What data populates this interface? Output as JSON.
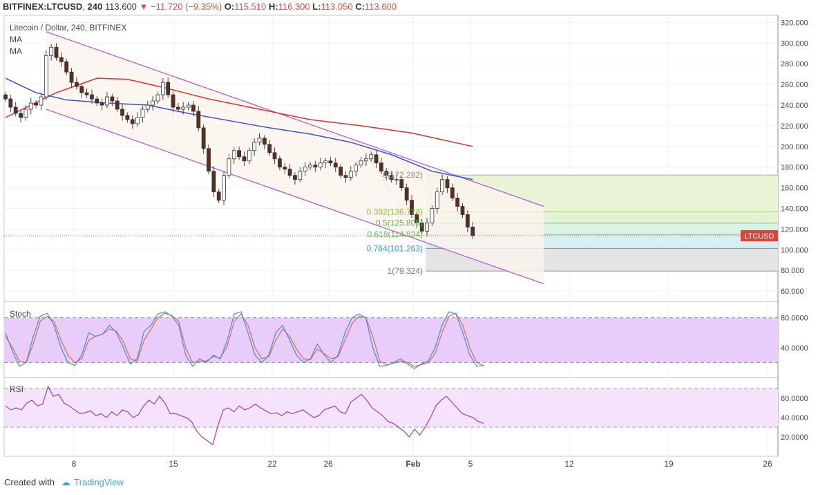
{
  "header": {
    "symbol": "BITFINEX:LTCUSD",
    "interval": "240",
    "last": "113.600",
    "change": "−11.720 (−9.35%)",
    "open_label": "O:",
    "open": "115.510",
    "high_label": "H:",
    "high": "116.300",
    "low_label": "L:",
    "low": "113.050",
    "close_label": "C:",
    "close": "113.600"
  },
  "legend": {
    "title": "Litecoin / Dollar, 240, BITFINEX",
    "ma1": "MA",
    "ma2": "MA"
  },
  "footer": {
    "created_with": "Created with",
    "brand": "TradingView"
  },
  "chart_data": {
    "type": "candlestick",
    "x_ticks": [
      "8",
      "15",
      "22",
      "26",
      "Feb",
      "5",
      "12",
      "19",
      "26"
    ],
    "y_ticks": [
      "320.000",
      "300.000",
      "280.000",
      "260.000",
      "240.000",
      "220.000",
      "200.000",
      "180.000",
      "160.000",
      "140.000",
      "120.000",
      "100.000",
      "80.000",
      "60.000"
    ],
    "ylim": [
      50,
      327
    ],
    "last_price_label": "LTCUSD",
    "last_price": 113.6,
    "fib_levels": [
      {
        "label": "0(172.282)",
        "value": 172.282
      },
      {
        "label": "0.382(136.773)",
        "value": 136.773
      },
      {
        "label": "0.5(125.805)",
        "value": 125.805
      },
      {
        "label": "0.618(114.834)",
        "value": 114.834
      },
      {
        "label": "0.764(101.263)",
        "value": 101.263
      },
      {
        "label": "1(79.324)",
        "value": 79.324
      }
    ],
    "close_series": [
      246,
      238,
      232,
      228,
      236,
      242,
      240,
      248,
      288,
      296,
      286,
      282,
      272,
      262,
      258,
      252,
      250,
      246,
      242,
      240,
      248,
      244,
      236,
      230,
      226,
      222,
      228,
      236,
      240,
      244,
      250,
      262,
      250,
      238,
      236,
      238,
      240,
      234,
      218,
      198,
      176,
      156,
      148,
      172,
      188,
      196,
      190,
      186,
      196,
      204,
      208,
      202,
      194,
      188,
      180,
      178,
      172,
      168,
      176,
      180,
      182,
      180,
      184,
      186,
      184,
      180,
      172,
      170,
      176,
      182,
      186,
      188,
      192,
      184,
      176,
      172,
      168,
      168,
      160,
      148,
      134,
      126,
      118,
      126,
      140,
      156,
      168,
      160,
      150,
      142,
      134,
      122,
      113.6
    ],
    "ma_slow": [
      {
        "x": 0,
        "y": 228
      },
      {
        "x": 10,
        "y": 252
      },
      {
        "x": 18,
        "y": 266
      },
      {
        "x": 24,
        "y": 265
      },
      {
        "x": 32,
        "y": 256
      },
      {
        "x": 40,
        "y": 246
      },
      {
        "x": 50,
        "y": 236
      },
      {
        "x": 60,
        "y": 226
      },
      {
        "x": 70,
        "y": 220
      },
      {
        "x": 80,
        "y": 213
      },
      {
        "x": 92,
        "y": 200
      }
    ],
    "ma_fast": [
      {
        "x": 0,
        "y": 266
      },
      {
        "x": 6,
        "y": 252
      },
      {
        "x": 12,
        "y": 245
      },
      {
        "x": 20,
        "y": 242
      },
      {
        "x": 28,
        "y": 240
      },
      {
        "x": 36,
        "y": 232
      },
      {
        "x": 44,
        "y": 225
      },
      {
        "x": 52,
        "y": 218
      },
      {
        "x": 60,
        "y": 212
      },
      {
        "x": 68,
        "y": 204
      },
      {
        "x": 76,
        "y": 192
      },
      {
        "x": 84,
        "y": 176
      },
      {
        "x": 92,
        "y": 168
      }
    ],
    "channel_upper": [
      {
        "x": 8,
        "y": 311
      },
      {
        "x": 106,
        "y": 142
      }
    ],
    "channel_lower": [
      {
        "x": 8,
        "y": 236
      },
      {
        "x": 106,
        "y": 67
      }
    ],
    "stoch": {
      "label": "Stoch",
      "y_ticks": [
        "80.0000",
        "40.0000"
      ],
      "ylim": [
        0,
        100
      ],
      "band": [
        20,
        80
      ],
      "k": [
        60,
        35,
        15,
        20,
        55,
        82,
        86,
        70,
        40,
        20,
        16,
        30,
        60,
        55,
        58,
        70,
        60,
        40,
        18,
        25,
        62,
        70,
        85,
        88,
        82,
        70,
        30,
        15,
        25,
        20,
        30,
        25,
        50,
        85,
        88,
        60,
        30,
        20,
        30,
        60,
        70,
        50,
        30,
        20,
        25,
        45,
        30,
        20,
        30,
        60,
        80,
        85,
        80,
        40,
        15,
        16,
        20,
        25,
        18,
        12,
        18,
        22,
        40,
        70,
        88,
        85,
        60,
        30,
        15,
        16
      ],
      "d": [
        55,
        40,
        22,
        20,
        45,
        75,
        82,
        75,
        50,
        30,
        20,
        25,
        50,
        55,
        58,
        65,
        62,
        48,
        25,
        22,
        50,
        65,
        80,
        86,
        83,
        75,
        40,
        20,
        22,
        22,
        28,
        26,
        42,
        75,
        85,
        70,
        40,
        25,
        28,
        50,
        65,
        55,
        38,
        25,
        24,
        38,
        32,
        25,
        28,
        50,
        72,
        82,
        80,
        55,
        22,
        17,
        19,
        22,
        20,
        15,
        17,
        20,
        32,
        60,
        82,
        86,
        70,
        40,
        20,
        16
      ]
    },
    "rsi": {
      "label": "RSI",
      "y_ticks": [
        "60.0000",
        "40.0000",
        "20.0000"
      ],
      "ylim": [
        0,
        80
      ],
      "band": [
        30,
        70
      ],
      "values": [
        52,
        48,
        50,
        48,
        55,
        58,
        52,
        54,
        72,
        62,
        64,
        55,
        52,
        48,
        44,
        45,
        47,
        42,
        44,
        40,
        46,
        42,
        48,
        46,
        40,
        43,
        52,
        58,
        54,
        62,
        55,
        44,
        44,
        42,
        40,
        36,
        26,
        20,
        16,
        12,
        32,
        48,
        50,
        46,
        52,
        48,
        50,
        54,
        50,
        47,
        44,
        45,
        42,
        46,
        44,
        46,
        48,
        44,
        40,
        42,
        48,
        50,
        52,
        46,
        44,
        56,
        60,
        64,
        58,
        50,
        46,
        42,
        36,
        34,
        30,
        26,
        20,
        28,
        22,
        30,
        40,
        52,
        58,
        62,
        56,
        50,
        44,
        42,
        40,
        36,
        34
      ]
    }
  }
}
